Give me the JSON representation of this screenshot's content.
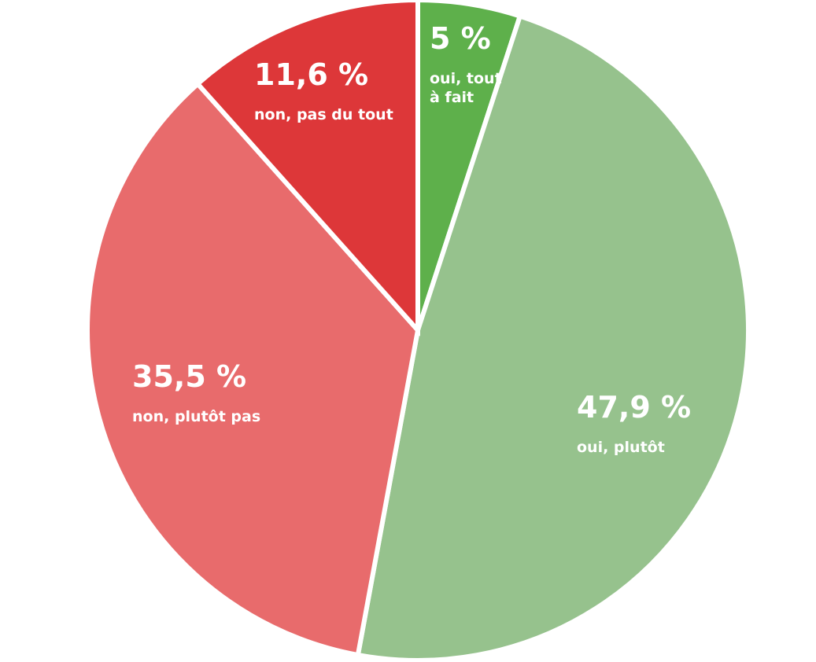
{
  "chart_data": {
    "type": "pie",
    "start_angle_deg": 0,
    "direction": "clockwise",
    "slices": [
      {
        "label": "oui, tout\nà fait",
        "value": 5,
        "value_label": "5 %",
        "color": "#5eb04b"
      },
      {
        "label": "oui, plutôt",
        "value": 47.9,
        "value_label": "47,9 %",
        "color": "#96c28d"
      },
      {
        "label": "non, plutôt pas",
        "value": 35.5,
        "value_label": "35,5 %",
        "color": "#e86b6c"
      },
      {
        "label": "non, pas du tout",
        "value": 11.6,
        "value_label": "11,6 %",
        "color": "#dd3739"
      }
    ]
  }
}
